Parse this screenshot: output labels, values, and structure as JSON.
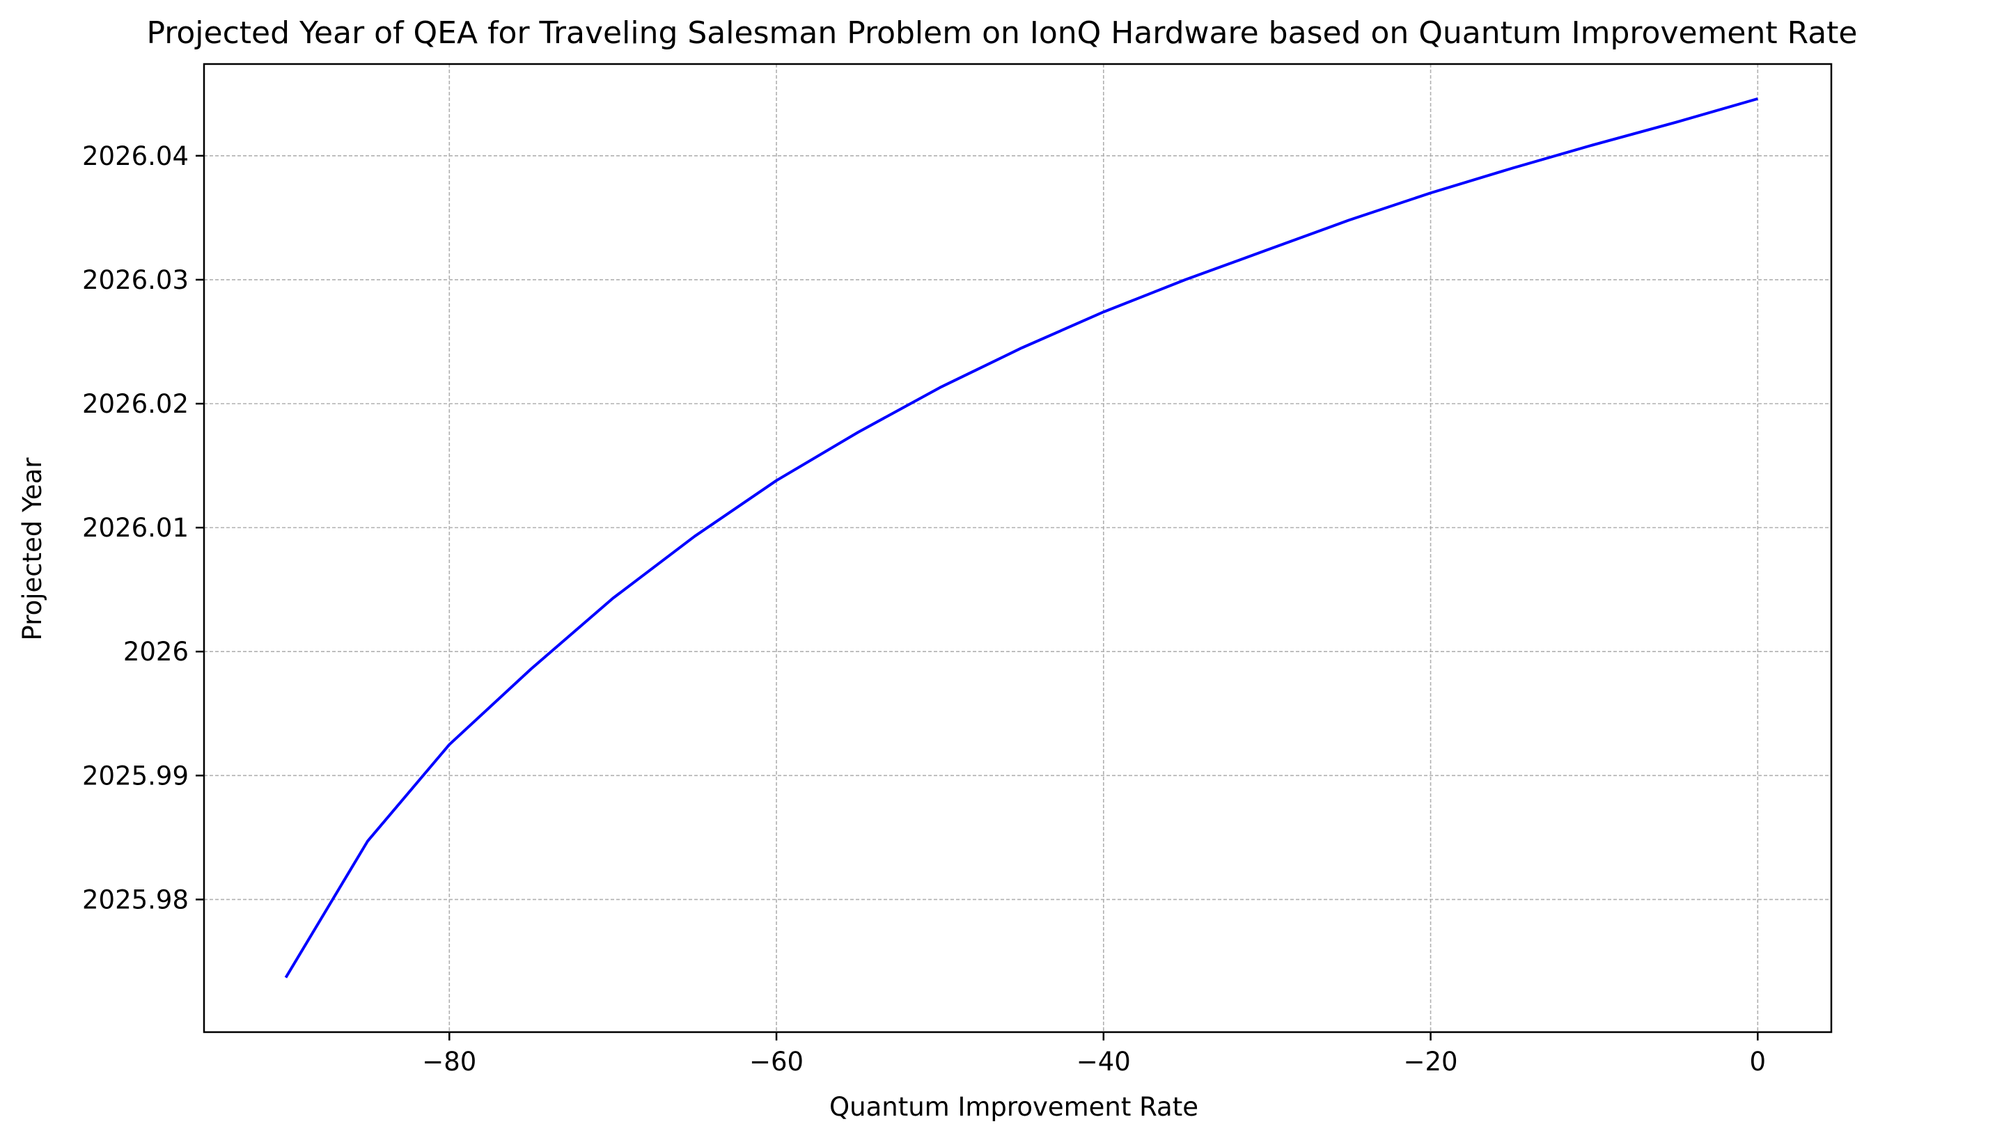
{
  "chart_data": {
    "type": "line",
    "title": "Projected Year of QEA for Traveling Salesman Problem on IonQ Hardware based on Quantum Improvement Rate",
    "xlabel": "Quantum Improvement Rate",
    "ylabel": "Projected Year",
    "xlim": [
      -95,
      4.5
    ],
    "ylim": [
      2025.9693,
      2026.0474
    ],
    "x_ticks": [
      -80,
      -60,
      -40,
      -20,
      0
    ],
    "x_tick_labels": [
      "−80",
      "−60",
      "−40",
      "−20",
      "0"
    ],
    "y_ticks": [
      2025.98,
      2025.99,
      2026,
      2026.01,
      2026.02,
      2026.03,
      2026.04
    ],
    "y_tick_labels": [
      "2025.98",
      "2025.99",
      "2026",
      "2026.01",
      "2026.02",
      "2026.03",
      "2026.04"
    ],
    "grid": true,
    "grid_style": "dashed",
    "series": [
      {
        "color": "#0000ff",
        "x": [
          -90,
          -85,
          -80,
          -75,
          -70,
          -65,
          -60,
          -55,
          -50,
          -45,
          -40,
          -35,
          -30,
          -25,
          -20,
          -15,
          -10,
          -5,
          0
        ],
        "y": [
          2025.9737,
          2025.9847,
          2025.9925,
          2025.9986,
          2026.0043,
          2026.0093,
          2026.0138,
          2026.0177,
          2026.0213,
          2026.0245,
          2026.0274,
          2026.03,
          2026.0324,
          2026.0348,
          2026.037,
          2026.039,
          2026.0409,
          2026.0427,
          2026.0446
        ]
      }
    ]
  }
}
